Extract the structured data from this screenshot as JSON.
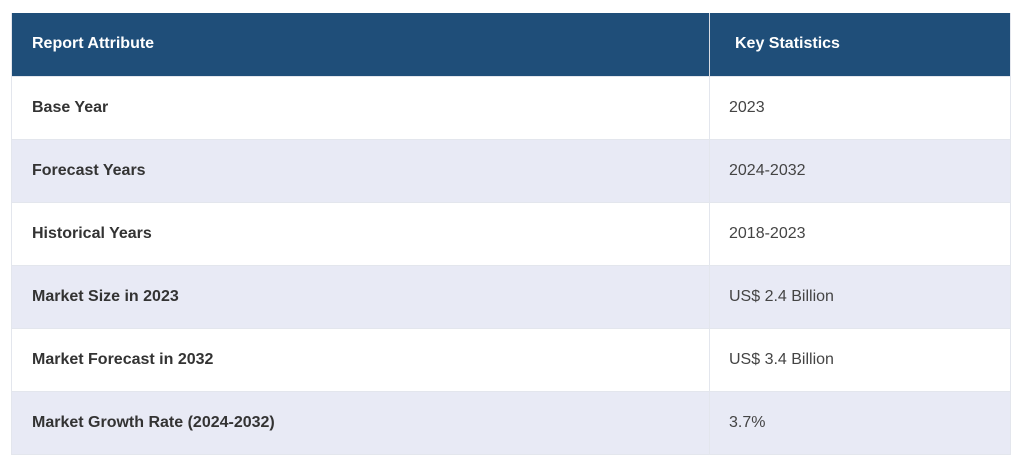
{
  "table": {
    "headers": [
      "Report Attribute",
      "Key Statistics"
    ],
    "rows": [
      {
        "attribute": "Base Year",
        "value": "2023"
      },
      {
        "attribute": "Forecast Years",
        "value": "2024-2032"
      },
      {
        "attribute": "Historical Years",
        "value": "2018-2023"
      },
      {
        "attribute": "Market Size in 2023",
        "value": "US$ 2.4 Billion"
      },
      {
        "attribute": "Market Forecast in 2032",
        "value": "US$ 3.4 Billion"
      },
      {
        "attribute": "Market Growth Rate (2024-2032)",
        "value": "3.7%"
      }
    ]
  },
  "colors": {
    "header_bg": "#1f4e79",
    "header_text": "#ffffff",
    "alt_row_bg": "#e8eaf5",
    "row_bg": "#ffffff"
  }
}
